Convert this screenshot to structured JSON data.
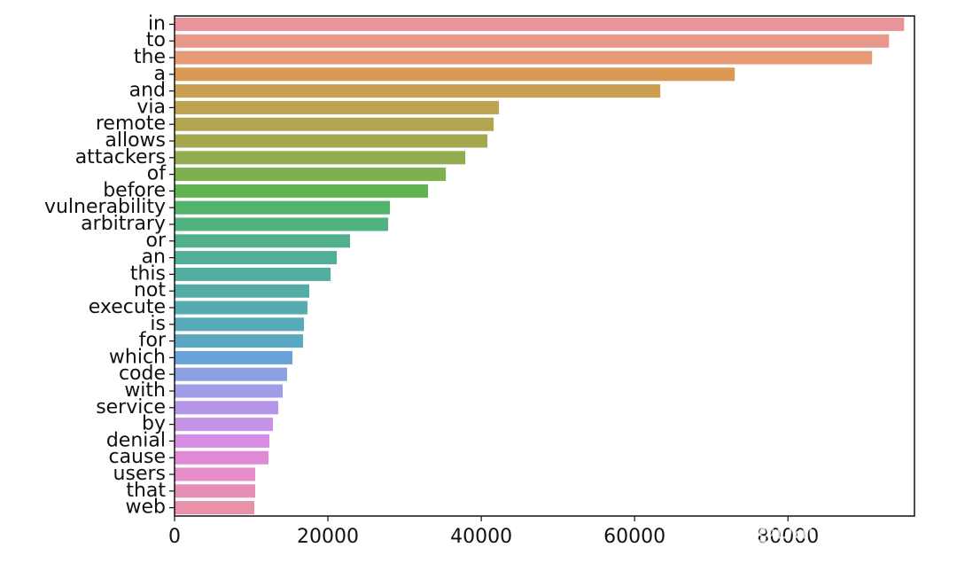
{
  "chart_data": {
    "type": "barh",
    "categories": [
      "in",
      "to",
      "the",
      "a",
      "and",
      "via",
      "remote",
      "allows",
      "attackers",
      "of",
      "before",
      "vulnerability",
      "arbitrary",
      "or",
      "an",
      "this",
      "not",
      "execute",
      "is",
      "for",
      "which",
      "code",
      "with",
      "service",
      "by",
      "denial",
      "cause",
      "users",
      "that",
      "web"
    ],
    "values": [
      95150,
      93180,
      90980,
      73060,
      63350,
      42310,
      41620,
      40810,
      37920,
      35380,
      33060,
      28090,
      27860,
      22890,
      21160,
      20350,
      17570,
      17340,
      16880,
      16760,
      15380,
      14680,
      14100,
      13530,
      12830,
      12370,
      12250,
      10520,
      10520,
      10400
    ],
    "colors": [
      "#e8949a",
      "#e8988a",
      "#e59a74",
      "#d99a55",
      "#cc9e50",
      "#bea250",
      "#b1a550",
      "#a3a84f",
      "#93ac4f",
      "#7fb04f",
      "#5fb451",
      "#50b46d",
      "#50b27f",
      "#51b08c",
      "#52af97",
      "#53ada1",
      "#54aca9",
      "#55abb1",
      "#57aab9",
      "#5aa8c4",
      "#6aa3da",
      "#8aa0e0",
      "#a09de6",
      "#b497e6",
      "#c492e6",
      "#d68ce4",
      "#e08ad6",
      "#e68cc6",
      "#e68eb6",
      "#e891a8"
    ],
    "xlim": [
      0,
      96500
    ],
    "xticks": [
      0,
      20000,
      40000,
      60000,
      80000
    ],
    "watermark": "知乎 @DataFountain"
  }
}
